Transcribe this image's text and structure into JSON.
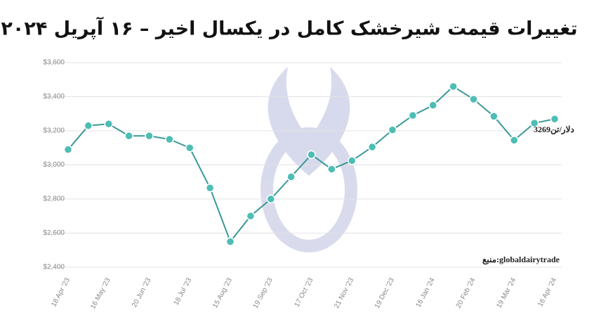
{
  "chart_data": {
    "type": "line",
    "title": "تغییرات قیمت شیرخشک کامل در یکسال اخیر – ۱۶ آپریل ۲۰۲۴",
    "source": "منبع:globaldairytrade",
    "categories": [
      "18 Apr '23",
      null,
      "16 May '23",
      null,
      "20 Jun '23",
      null,
      "18 Jul '23",
      null,
      "15 Aug '23",
      null,
      "19 Sep '23",
      null,
      "17 Oct '23",
      null,
      "21 Nov '23",
      null,
      "19 Dec '23",
      null,
      "16 Jan '24",
      null,
      "20 Feb '24",
      null,
      "19 Mar '24",
      null,
      "16 Apr '24"
    ],
    "values": [
      3090,
      3230,
      3240,
      3170,
      3170,
      3150,
      3100,
      2865,
      2550,
      2700,
      2800,
      2930,
      3060,
      2975,
      3025,
      3105,
      3205,
      3290,
      3350,
      3460,
      3385,
      3285,
      3145,
      3245,
      3269
    ],
    "value_labels": [
      null,
      null,
      null,
      null,
      null,
      null,
      null,
      null,
      null,
      null,
      null,
      null,
      null,
      null,
      null,
      null,
      null,
      null,
      null,
      null,
      null,
      null,
      null,
      null,
      "3269دلار/تن"
    ],
    "color": "#3a9a98",
    "marker_color": "#4dbdb5",
    "ylim": [
      2400,
      3600
    ],
    "yticks": [
      {
        "value": 2400,
        "label": "$2,400"
      },
      {
        "value": 2600,
        "label": "$2,600"
      },
      {
        "value": 2800,
        "label": "$2,800"
      },
      {
        "value": 3000,
        "label": "$3,000"
      },
      {
        "value": 3200,
        "label": "$3,200"
      },
      {
        "value": 3400,
        "label": "$3,400"
      },
      {
        "value": 3600,
        "label": "$3,600"
      }
    ],
    "grid": true
  }
}
